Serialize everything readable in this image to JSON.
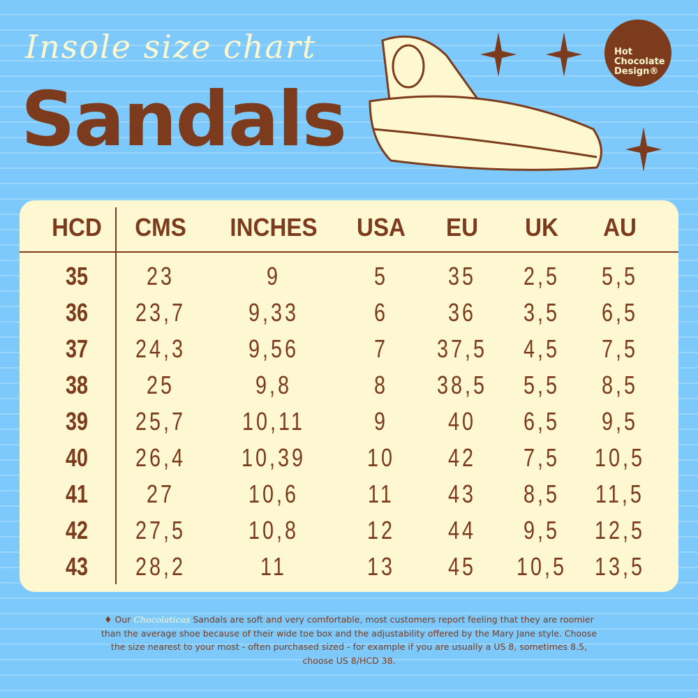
{
  "header": {
    "subtitle": "Insole size chart",
    "title": "Sandals"
  },
  "logo": {
    "lines": [
      "Hot",
      "Chocolate",
      "Design®"
    ]
  },
  "colors": {
    "background": "#7dc9fb",
    "brown": "#7b3b1c",
    "cream": "#fdf8d2"
  },
  "table": {
    "columns": [
      "HCD",
      "CMS",
      "INCHES",
      "USA",
      "EU",
      "UK",
      "AU"
    ],
    "rows": [
      [
        "35",
        "23",
        "9",
        "5",
        "35",
        "2,5",
        "5,5"
      ],
      [
        "36",
        "23,7",
        "9,33",
        "6",
        "36",
        "3,5",
        "6,5"
      ],
      [
        "37",
        "24,3",
        "9,56",
        "7",
        "37,5",
        "4,5",
        "7,5"
      ],
      [
        "38",
        "25",
        "9,8",
        "8",
        "38,5",
        "5,5",
        "8,5"
      ],
      [
        "39",
        "25,7",
        "10,11",
        "9",
        "40",
        "6,5",
        "9,5"
      ],
      [
        "40",
        "26,4",
        "10,39",
        "10",
        "42",
        "7,5",
        "10,5"
      ],
      [
        "41",
        "27",
        "10,6",
        "11",
        "43",
        "8,5",
        "11,5"
      ],
      [
        "42",
        "27,5",
        "10,8",
        "12",
        "44",
        "9,5",
        "12,5"
      ],
      [
        "43",
        "28,2",
        "11",
        "13",
        "45",
        "10,5",
        "13,5"
      ]
    ]
  },
  "footer": {
    "bullet": "♦ Our",
    "brand": "Chocolaticas",
    "text": "Sandals are soft and very comfortable, most customers report feeling that they are roomier than the average shoe because of their wide toe box and the adjustability offered by the Mary Jane style. Choose the size nearest to your most - often  purchased sized - for example if you are usually a US 8, sometimes 8.5, choose US 8/HCD 38."
  }
}
